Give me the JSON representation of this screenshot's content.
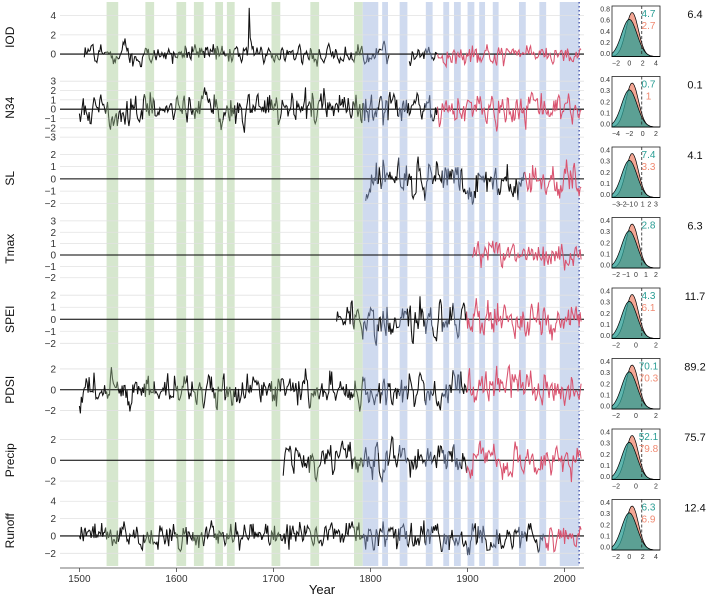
{
  "chart_data": {
    "type": "line",
    "xlabel": "Year",
    "xlim": [
      1480,
      2020
    ],
    "x_ticks": [
      "1500",
      "1600",
      "1700",
      "1800",
      "1900",
      "2000"
    ],
    "colors": {
      "reconstruction": "#111111",
      "instrumental": "#d9536f",
      "green_band": "#cfe3c6",
      "blue_band": "#c7d3ec",
      "teal": "#2a9d94",
      "salmon": "#f08a72",
      "marker_line": "#2b3ea0"
    },
    "green_bands": [
      [
        1528,
        1540
      ],
      [
        1568,
        1577
      ],
      [
        1600,
        1610
      ],
      [
        1618,
        1628
      ],
      [
        1640,
        1648
      ],
      [
        1652,
        1660
      ],
      [
        1698,
        1707
      ],
      [
        1738,
        1747
      ],
      [
        1783,
        1792
      ]
    ],
    "blue_bands": [
      [
        1792,
        1808
      ],
      [
        1812,
        1818
      ],
      [
        1830,
        1838
      ],
      [
        1857,
        1864
      ],
      [
        1875,
        1881
      ],
      [
        1886,
        1893
      ],
      [
        1900,
        1907
      ],
      [
        1912,
        1918
      ],
      [
        1926,
        1932
      ],
      [
        1953,
        1960
      ],
      [
        1974,
        1981
      ],
      [
        1995,
        2015
      ]
    ],
    "marker_year": 2015,
    "panels": [
      {
        "label": "IOD",
        "ylim": [
          -1.5,
          5
        ],
        "yticks": [
          "4",
          "2",
          "0"
        ],
        "start": 1505,
        "gap": [
          1820,
          1840
        ],
        "instrumental_start": 1870,
        "amp": 0.6,
        "spike_year": 1675,
        "spike": 4.8,
        "r_value": "6.4",
        "teal_pct": "4.7",
        "salmon_pct": "2.7",
        "dist_ticks": [
          "−2",
          "0",
          "2",
          "4"
        ],
        "dist_yticks": [
          "0.8",
          "0.6",
          "0.4",
          "0.2",
          "0.0"
        ]
      },
      {
        "label": "N34",
        "ylim": [
          -3.2,
          3.5
        ],
        "yticks": [
          "3",
          "2",
          "1",
          "0",
          "−1",
          "−2",
          "−3"
        ],
        "start": 1500,
        "gap": null,
        "instrumental_start": 1870,
        "amp": 1.0,
        "r_value": "0.1",
        "teal_pct": "0.7",
        "salmon_pct": "1",
        "dist_ticks": [
          "−4",
          "−2",
          "0",
          "2"
        ],
        "dist_yticks": [
          "0.4",
          "0.3",
          "0.2",
          "0.1",
          "0.0"
        ]
      },
      {
        "label": "SL",
        "ylim": [
          -2.5,
          2.6
        ],
        "yticks": [
          "2",
          "1",
          "0",
          "−1",
          "−2"
        ],
        "start": 1795,
        "gap": null,
        "instrumental_start": 1960,
        "amp": 0.9,
        "r_value": "4.1",
        "teal_pct": "7.4",
        "salmon_pct": "3.3",
        "dist_ticks": [
          "−3",
          "−2",
          "−1",
          "0",
          "1",
          "2",
          "3"
        ],
        "dist_yticks": [
          "0.4",
          "0.3",
          "0.2",
          "0.1",
          "0.0"
        ]
      },
      {
        "label": "Tmax",
        "ylim": [
          -2.2,
          3.3
        ],
        "yticks": [
          "3",
          "2",
          "1",
          "0",
          "−1",
          "−2"
        ],
        "start": 1905,
        "gap": null,
        "instrumental_start": 1905,
        "amp": 0.7,
        "r_value": "6.3",
        "teal_pct": "2.8",
        "salmon_pct": "",
        "dist_ticks": [
          "−2",
          "−1",
          "0",
          "1",
          "2"
        ],
        "dist_yticks": [
          "0.4",
          "0.3",
          "0.2",
          "0.1",
          "0.0"
        ]
      },
      {
        "label": "SPEI",
        "ylim": [
          -2.6,
          2.6
        ],
        "yticks": [
          "2",
          "1",
          "0",
          "−1",
          "−2"
        ],
        "start": 1765,
        "gap": null,
        "instrumental_start": 1900,
        "amp": 0.9,
        "r_value": "11.7",
        "teal_pct": "4.3",
        "salmon_pct": "6.1",
        "dist_ticks": [
          "−2",
          "0",
          "2"
        ],
        "dist_yticks": [
          "0.4",
          "0.3",
          "0.2",
          "0.1",
          "0.0"
        ]
      },
      {
        "label": "PDSI",
        "ylim": [
          -3,
          3
        ],
        "yticks": [
          "2",
          "0",
          "−2"
        ],
        "start": 1500,
        "gap": null,
        "instrumental_start": 1900,
        "amp": 0.9,
        "r_value": "89.2",
        "teal_pct": "70.1",
        "salmon_pct": "70.3",
        "dist_ticks": [
          "−2",
          "0",
          "2"
        ],
        "dist_yticks": [
          "0.4",
          "0.3",
          "0.2",
          "0.1",
          "0.0"
        ]
      },
      {
        "label": "Precip",
        "ylim": [
          -3,
          3
        ],
        "yticks": [
          "2",
          "0",
          "−2"
        ],
        "start": 1710,
        "gap": null,
        "instrumental_start": 1900,
        "amp": 0.9,
        "r_value": "75.7",
        "teal_pct": "52.1",
        "salmon_pct": "79.8",
        "dist_ticks": [
          "−2",
          "0",
          "2"
        ],
        "dist_yticks": [
          "0.4",
          "0.3",
          "0.2",
          "0.1",
          "0.0"
        ]
      },
      {
        "label": "Runoff",
        "ylim": [
          -3,
          4.2
        ],
        "yticks": [
          "4",
          "2",
          "0",
          "−2"
        ],
        "start": 1500,
        "gap": null,
        "instrumental_start": 1980,
        "amp": 0.9,
        "r_value": "12.4",
        "teal_pct": "6.3",
        "salmon_pct": "6.9",
        "dist_ticks": [
          "−2",
          "0",
          "2",
          "4"
        ],
        "dist_yticks": [
          "0.4",
          "0.3",
          "0.2",
          "0.1",
          "0.0"
        ]
      }
    ]
  }
}
